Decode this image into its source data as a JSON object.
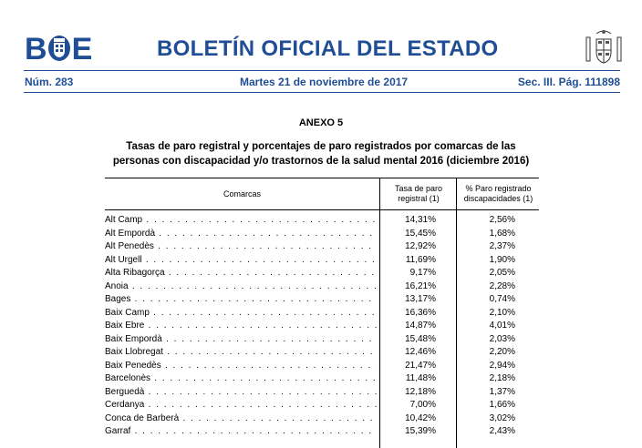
{
  "header": {
    "logo_text_left": "B",
    "logo_text_right": "E",
    "title": "BOLETÍN OFICIAL DEL ESTADO",
    "number": "Núm. 283",
    "date": "Martes 21 de noviembre de 2017",
    "section_page": "Sec. III.  Pág. 111898",
    "brand_color": "#1f4e96"
  },
  "annex": {
    "heading": "ANEXO 5",
    "subtitle_line1": "Tasas de paro registral y porcentajes de paro registrados por comarcas de las",
    "subtitle_line2": "personas con discapacidad y/o trastornos de la salud mental 2016 (diciembre 2016)"
  },
  "table": {
    "columns": [
      "Comarcas",
      "Tasa de paro registral (1)",
      "% Paro registrado discapacidades (1)"
    ],
    "rows": [
      {
        "comarca": "Alt Camp",
        "tasa": "14,31%",
        "pct": "2,56%"
      },
      {
        "comarca": "Alt Empordà",
        "tasa": "15,45%",
        "pct": "1,68%"
      },
      {
        "comarca": "Alt Penedès",
        "tasa": "12,92%",
        "pct": "2,37%"
      },
      {
        "comarca": "Alt Urgell",
        "tasa": "11,69%",
        "pct": "1,90%"
      },
      {
        "comarca": "Alta Ribagorça",
        "tasa": "9,17%",
        "pct": "2,05%"
      },
      {
        "comarca": "Anoia",
        "tasa": "16,21%",
        "pct": "2,28%"
      },
      {
        "comarca": "Bages",
        "tasa": "13,17%",
        "pct": "0,74%"
      },
      {
        "comarca": "Baix Camp",
        "tasa": "16,36%",
        "pct": "2,10%"
      },
      {
        "comarca": "Baix Ebre",
        "tasa": "14,87%",
        "pct": "4,01%"
      },
      {
        "comarca": "Baix Empordà",
        "tasa": "15,48%",
        "pct": "2,03%"
      },
      {
        "comarca": "Baix Llobregat",
        "tasa": "12,46%",
        "pct": "2,20%"
      },
      {
        "comarca": "Baix Penedès",
        "tasa": "21,47%",
        "pct": "2,94%"
      },
      {
        "comarca": "Barcelonès",
        "tasa": "11,48%",
        "pct": "2,18%"
      },
      {
        "comarca": "Berguedà",
        "tasa": "12,18%",
        "pct": "1,37%"
      },
      {
        "comarca": "Cerdanya",
        "tasa": "7,00%",
        "pct": "1,66%"
      },
      {
        "comarca": "Conca de Barberà",
        "tasa": "10,42%",
        "pct": "3,02%"
      },
      {
        "comarca": "Garraf",
        "tasa": "15,39%",
        "pct": "2,43%"
      }
    ]
  }
}
